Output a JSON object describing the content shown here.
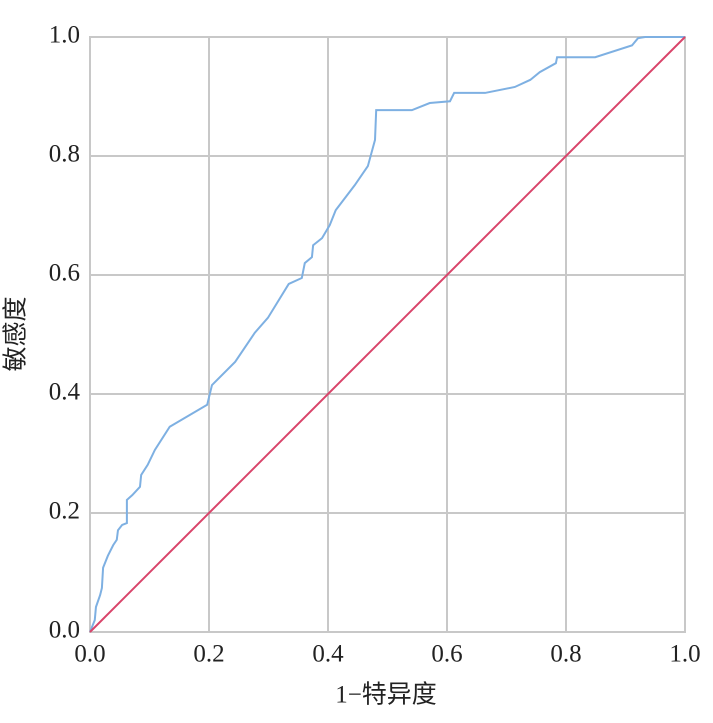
{
  "chart_data": {
    "type": "line",
    "xlabel": "1−特异度",
    "ylabel": "敏感度",
    "xlim": [
      0,
      1
    ],
    "ylim": [
      0,
      1
    ],
    "xticks": [
      {
        "value": 0,
        "label": "0.0"
      },
      0.2,
      0.4,
      0.6,
      0.8,
      {
        "value": 1,
        "label": "1.0"
      }
    ],
    "yticks": [
      {
        "value": 0,
        "label": "0.0"
      },
      0.2,
      0.4,
      0.6,
      0.8,
      {
        "value": 1,
        "label": "1.0"
      }
    ],
    "grid": true,
    "series": [
      {
        "color": "#7eb0e2",
        "x": [
          0,
          0.008,
          0.01,
          0.017,
          0.02,
          0.022,
          0.03,
          0.039,
          0.045,
          0.047,
          0.054,
          0.062,
          0.062,
          0.071,
          0.084,
          0.086,
          0.097,
          0.109,
          0.134,
          0.197,
          0.205,
          0.244,
          0.277,
          0.299,
          0.334,
          0.356,
          0.361,
          0.373,
          0.375,
          0.39,
          0.403,
          0.413,
          0.445,
          0.467,
          0.479,
          0.481,
          0.541,
          0.571,
          0.605,
          0.612,
          0.664,
          0.714,
          0.74,
          0.756,
          0.783,
          0.785,
          0.849,
          0.911,
          0.921,
          0.933,
          1
        ],
        "values": [
          0,
          0.02,
          0.042,
          0.062,
          0.074,
          0.108,
          0.128,
          0.146,
          0.155,
          0.171,
          0.18,
          0.183,
          0.222,
          0.23,
          0.244,
          0.264,
          0.281,
          0.306,
          0.345,
          0.382,
          0.415,
          0.454,
          0.503,
          0.528,
          0.585,
          0.595,
          0.62,
          0.63,
          0.65,
          0.662,
          0.684,
          0.709,
          0.751,
          0.783,
          0.827,
          0.877,
          0.877,
          0.889,
          0.892,
          0.906,
          0.906,
          0.916,
          0.928,
          0.941,
          0.956,
          0.966,
          0.966,
          0.986,
          0.998,
          1,
          1
        ]
      },
      {
        "color": "#d9446a",
        "x": [
          0,
          1
        ],
        "values": [
          0,
          1
        ]
      }
    ]
  }
}
